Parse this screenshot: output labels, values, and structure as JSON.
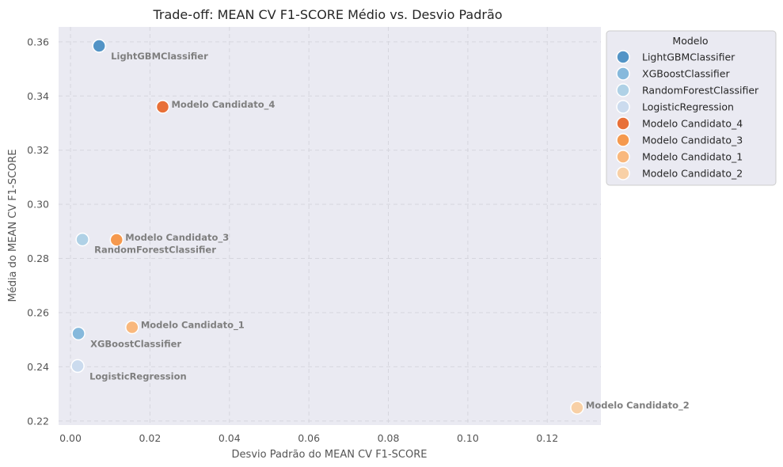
{
  "chart_data": {
    "type": "scatter",
    "title": "Trade-off: MEAN CV F1-SCORE Médio vs. Desvio Padrão",
    "xlabel": "Desvio Padrão do MEAN CV F1-SCORE",
    "ylabel": "Média do MEAN CV F1-SCORE",
    "xlim": [
      -0.003,
      0.1335
    ],
    "ylim": [
      0.2185,
      0.3655
    ],
    "xticks": [
      0.0,
      0.02,
      0.04,
      0.06,
      0.08,
      0.1,
      0.12
    ],
    "xtick_labels": [
      "0.00",
      "0.02",
      "0.04",
      "0.06",
      "0.08",
      "0.10",
      "0.12"
    ],
    "yticks": [
      0.22,
      0.24,
      0.26,
      0.28,
      0.3,
      0.32,
      0.34,
      0.36
    ],
    "ytick_labels": [
      "0.22",
      "0.24",
      "0.26",
      "0.28",
      "0.30",
      "0.32",
      "0.34",
      "0.36"
    ],
    "grid": true,
    "legend_title": "Modelo",
    "legend_position": "outside-right-top",
    "points": [
      {
        "name": "LightGBMClassifier",
        "x": 0.0072,
        "y": 0.3585,
        "color": "#5394c6",
        "label_side": "below"
      },
      {
        "name": "XGBoostClassifier",
        "x": 0.002,
        "y": 0.2523,
        "color": "#86b9dc",
        "label_side": "below"
      },
      {
        "name": "RandomForestClassifier",
        "x": 0.003,
        "y": 0.287,
        "color": "#afd1e6",
        "label_side": "below"
      },
      {
        "name": "LogisticRegression",
        "x": 0.0018,
        "y": 0.2403,
        "color": "#cbdbee",
        "label_side": "below"
      },
      {
        "name": "Modelo Candidato_4",
        "x": 0.0232,
        "y": 0.336,
        "color": "#e87038",
        "label_side": "right"
      },
      {
        "name": "Modelo Candidato_3",
        "x": 0.0116,
        "y": 0.2869,
        "color": "#f5994e",
        "label_side": "right"
      },
      {
        "name": "Modelo Candidato_1",
        "x": 0.0155,
        "y": 0.2546,
        "color": "#f9b87d",
        "label_side": "right"
      },
      {
        "name": "Modelo Candidato_2",
        "x": 0.1275,
        "y": 0.2249,
        "color": "#f8d0a6",
        "label_side": "right"
      }
    ]
  }
}
